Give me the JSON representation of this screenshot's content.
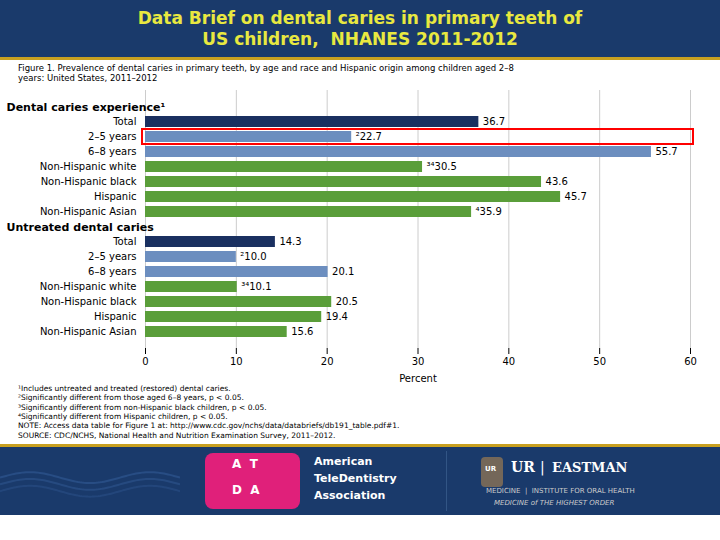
{
  "chart_data": {
    "type": "bar",
    "orientation": "horizontal",
    "title": "Data Brief on dental caries in primary teeth of\nUS children,  NHANES 2011-2012",
    "subtitle": "Figure 1. Prevalence of dental caries in primary teeth, by age and race and Hispanic origin among children aged 2–8\nyears: United States, 2011–2012",
    "xlabel": "Percent",
    "xlim": [
      0,
      60
    ],
    "xticks": [
      0,
      10,
      20,
      30,
      40,
      50,
      60
    ],
    "grid": true,
    "data_labels": true,
    "sections": [
      {
        "label": "Dental caries experience¹",
        "categories": [
          "Total",
          "2–5 years",
          "6–8 years",
          "Non-Hispanic white",
          "Non-Hispanic black",
          "Hispanic",
          "Non-Hispanic Asian"
        ],
        "values": [
          36.7,
          22.7,
          55.7,
          30.5,
          43.6,
          45.7,
          35.9
        ],
        "value_labels": [
          "36.7",
          "²22.7",
          "55.7",
          "³⁴30.5",
          "43.6",
          "45.7",
          "⁴35.9"
        ],
        "colors": [
          "#1a3060",
          "#6c8ebf",
          "#6c8ebf",
          "#5a9e3a",
          "#5a9e3a",
          "#5a9e3a",
          "#5a9e3a"
        ],
        "highlight": "2–5 years",
        "highlight_color": "red"
      },
      {
        "label": "Untreated dental caries",
        "categories": [
          "Total",
          "2–5 years",
          "6–8 years",
          "Non-Hispanic white",
          "Non-Hispanic black",
          "Hispanic",
          "Non-Hispanic Asian"
        ],
        "values": [
          14.3,
          10.0,
          20.1,
          10.1,
          20.5,
          19.4,
          15.6
        ],
        "value_labels": [
          "14.3",
          "²10.0",
          "20.1",
          "³⁴10.1",
          "20.5",
          "19.4",
          "15.6"
        ],
        "colors": [
          "#1a3060",
          "#6c8ebf",
          "#6c8ebf",
          "#5a9e3a",
          "#5a9e3a",
          "#5a9e3a",
          "#5a9e3a"
        ]
      }
    ],
    "footnotes": [
      "¹Includes untreated and treated (restored) dental caries.",
      "²Significantly different from those aged 6–8 years, p < 0.05.",
      "³Significantly different from non-Hispanic black children, p < 0.05.",
      "⁴Significantly different from Hispanic children, p < 0.05.",
      "NOTE: Access data table for Figure 1 at: http://www.cdc.gov/nchs/data/databriefs/db191_table.pdf#1.",
      "SOURCE: CDC/NCHS, National Health and Nutrition Examination Survey, 2011–2012."
    ],
    "footer_texts": [
      "A  T",
      "D  A",
      "American",
      "TeleDentistry",
      "Association",
      "UR",
      "UR",
      "|",
      "EASTMAN",
      "MEDICINE  |  INSTITUTE FOR ORAL HEALTH",
      "MEDICINE of THE HIGHEST ORDER"
    ]
  }
}
